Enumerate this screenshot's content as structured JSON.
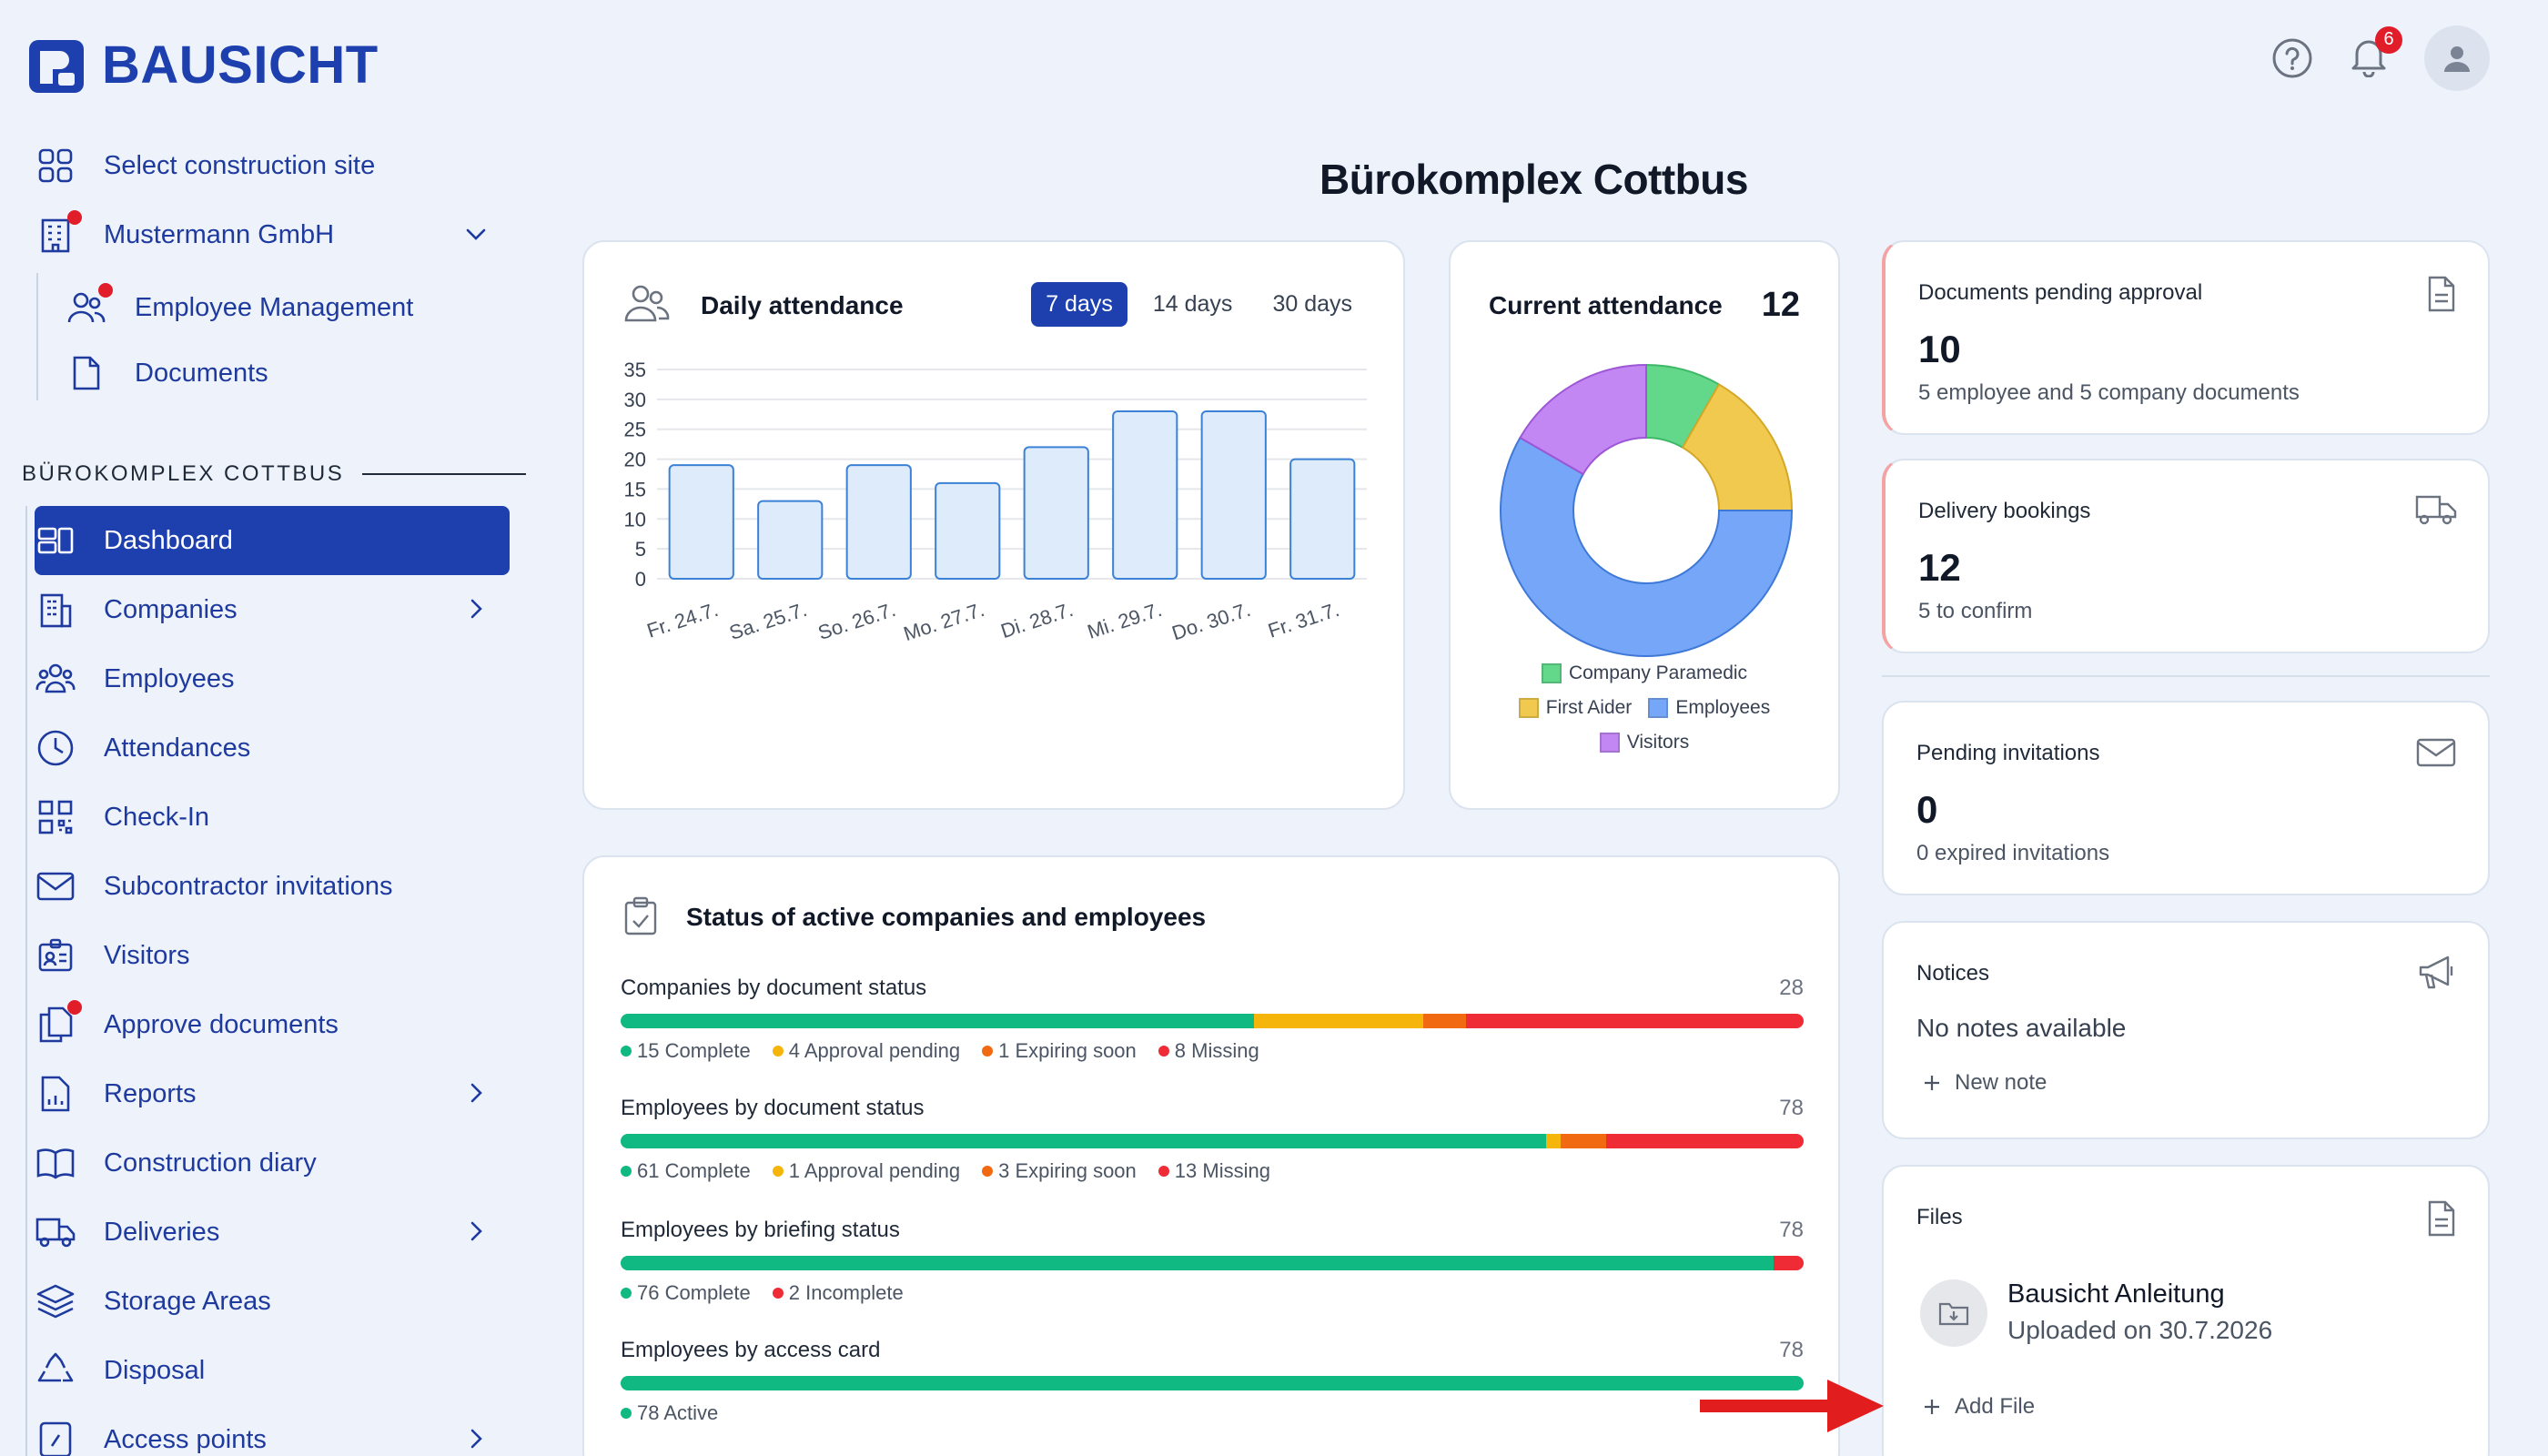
{
  "brand": "BAUSICHT",
  "header": {
    "notification_count": "6"
  },
  "page_title": "Bürokomplex Cottbus",
  "nav_top": [
    {
      "label": "Select construction site",
      "icon": "grid-icon"
    },
    {
      "label": "Mustermann GmbH",
      "icon": "building-icon"
    },
    {
      "label": "Employee Management",
      "icon": "users-icon"
    },
    {
      "label": "Documents",
      "icon": "document-icon"
    }
  ],
  "section_label": "BÜROKOMPLEX COTTBUS",
  "nav": [
    {
      "label": "Dashboard"
    },
    {
      "label": "Companies"
    },
    {
      "label": "Employees"
    },
    {
      "label": "Attendances"
    },
    {
      "label": "Check-In"
    },
    {
      "label": "Subcontractor invitations"
    },
    {
      "label": "Visitors"
    },
    {
      "label": "Approve documents"
    },
    {
      "label": "Reports"
    },
    {
      "label": "Construction diary"
    },
    {
      "label": "Deliveries"
    },
    {
      "label": "Storage Areas"
    },
    {
      "label": "Disposal"
    },
    {
      "label": "Access points"
    }
  ],
  "daily_attendance": {
    "title": "Daily attendance",
    "tabs": [
      "7 days",
      "14 days",
      "30 days"
    ],
    "selected_tab": "7 days"
  },
  "chart_data": [
    {
      "type": "bar",
      "categories": [
        "Fr. 24.7.",
        "Sa. 25.7.",
        "So. 26.7.",
        "Mo. 27.7.",
        "Di. 28.7.",
        "Mi. 29.7.",
        "Do. 30.7.",
        "Fr. 31.7."
      ],
      "values": [
        19,
        13,
        19,
        16,
        22,
        28,
        28,
        20
      ],
      "yticks": [
        "0",
        "5",
        "10",
        "15",
        "20",
        "25",
        "30",
        "35"
      ],
      "ylim": [
        0,
        35
      ],
      "grid": true
    },
    {
      "type": "pie",
      "categories": [
        "Company Paramedic",
        "First Aider",
        "Employees",
        "Visitors"
      ],
      "values": [
        1,
        2,
        7,
        2
      ],
      "colors": [
        "#63d88a",
        "#f0c94e",
        "#76a6f7",
        "#c287f3"
      ]
    }
  ],
  "current_attendance": {
    "title": "Current attendance",
    "total": "12"
  },
  "stats": {
    "documents": {
      "label": "Documents pending approval",
      "value": "10",
      "sub": "5 employee and 5 company documents"
    },
    "deliveries": {
      "label": "Delivery bookings",
      "value": "12",
      "sub": "5 to confirm"
    },
    "invitations": {
      "label": "Pending invitations",
      "value": "0",
      "sub": "0 expired invitations"
    },
    "notices": {
      "label": "Notices",
      "empty": "No notes available",
      "action": "New note"
    },
    "files": {
      "label": "Files",
      "file_name": "Bausicht Anleitung",
      "file_date": "Uploaded on 30.7.2026",
      "action": "Add File"
    }
  },
  "status": {
    "title": "Status of active companies and employees",
    "colors": {
      "complete": "#10b981",
      "pending": "#f5b50a",
      "expiring": "#f16a12",
      "missing": "#ef2b36"
    },
    "rows": [
      {
        "title": "Companies by document status",
        "count": "28",
        "segments": [
          {
            "key": "complete",
            "value": 15,
            "text": "15 Complete"
          },
          {
            "key": "pending",
            "value": 4,
            "text": "4 Approval pending"
          },
          {
            "key": "expiring",
            "value": 1,
            "text": "1 Expiring soon"
          },
          {
            "key": "missing",
            "value": 8,
            "text": "8 Missing"
          }
        ]
      },
      {
        "title": "Employees by document status",
        "count": "78",
        "segments": [
          {
            "key": "complete",
            "value": 61,
            "text": "61 Complete"
          },
          {
            "key": "pending",
            "value": 1,
            "text": "1 Approval pending"
          },
          {
            "key": "expiring",
            "value": 3,
            "text": "3 Expiring soon"
          },
          {
            "key": "missing",
            "value": 13,
            "text": "13 Missing"
          }
        ]
      },
      {
        "title": "Employees by briefing status",
        "count": "78",
        "segments": [
          {
            "key": "complete",
            "value": 76,
            "text": "76 Complete"
          },
          {
            "key": "missing",
            "value": 2,
            "text": "2 Incomplete"
          }
        ]
      },
      {
        "title": "Employees by access card",
        "count": "78",
        "segments": [
          {
            "key": "complete",
            "value": 78,
            "text": "78 Active"
          }
        ]
      }
    ]
  }
}
